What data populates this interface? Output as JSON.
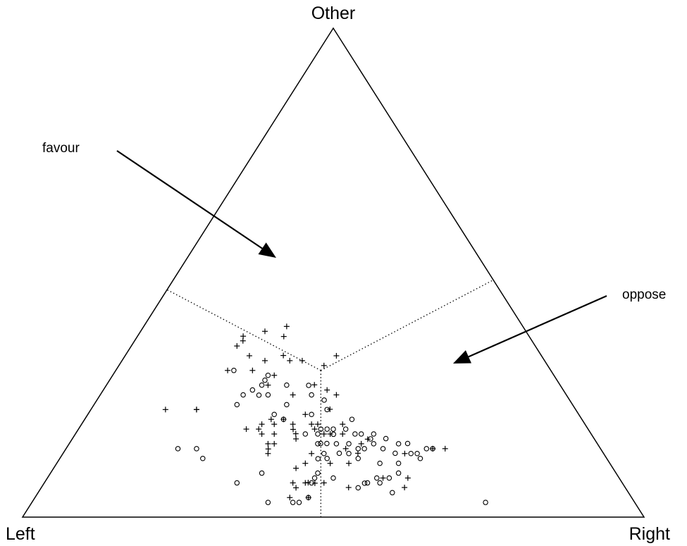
{
  "chart_data": {
    "type": "scatter",
    "subtype": "ternary",
    "title": "",
    "vertices": {
      "top": "Other",
      "left": "Left",
      "right": "Right"
    },
    "annotations": [
      {
        "text": "favour",
        "points_to": "+"
      },
      {
        "text": "oppose",
        "points_to": "o"
      }
    ],
    "reference_point": {
      "left": 0.37,
      "right": 0.33,
      "other": 0.3
    },
    "series": [
      {
        "marker": "+",
        "points": [
          [
            0.48,
            0.17,
            0.35
          ],
          [
            0.46,
            0.17,
            0.37
          ],
          [
            0.46,
            0.18,
            0.35
          ],
          [
            0.42,
            0.2,
            0.38
          ],
          [
            0.4,
            0.23,
            0.38
          ],
          [
            0.38,
            0.23,
            0.39
          ],
          [
            0.47,
            0.2,
            0.33
          ],
          [
            0.33,
            0.34,
            0.33
          ],
          [
            0.36,
            0.33,
            0.31
          ],
          [
            0.52,
            0.18,
            0.3
          ],
          [
            0.48,
            0.22,
            0.3
          ],
          [
            0.41,
            0.26,
            0.32
          ],
          [
            0.45,
            0.23,
            0.32
          ],
          [
            0.41,
            0.27,
            0.32
          ],
          [
            0.39,
            0.29,
            0.32
          ],
          [
            0.45,
            0.26,
            0.29
          ],
          [
            0.61,
            0.17,
            0.22
          ],
          [
            0.61,
            0.17,
            0.22
          ],
          [
            0.66,
            0.12,
            0.22
          ],
          [
            0.47,
            0.26,
            0.27
          ],
          [
            0.44,
            0.31,
            0.25
          ],
          [
            0.39,
            0.34,
            0.26
          ],
          [
            0.37,
            0.38,
            0.25
          ],
          [
            0.39,
            0.39,
            0.21
          ],
          [
            0.44,
            0.35,
            0.21
          ],
          [
            0.44,
            0.37,
            0.19
          ],
          [
            0.5,
            0.3,
            0.2
          ],
          [
            0.48,
            0.32,
            0.2
          ],
          [
            0.5,
            0.31,
            0.19
          ],
          [
            0.53,
            0.29,
            0.18
          ],
          [
            0.55,
            0.27,
            0.18
          ],
          [
            0.52,
            0.29,
            0.19
          ],
          [
            0.47,
            0.34,
            0.19
          ],
          [
            0.38,
            0.36,
            0.26
          ],
          [
            0.44,
            0.38,
            0.18
          ],
          [
            0.43,
            0.4,
            0.17
          ],
          [
            0.53,
            0.3,
            0.17
          ],
          [
            0.51,
            0.32,
            0.17
          ],
          [
            0.48,
            0.34,
            0.19
          ],
          [
            0.43,
            0.38,
            0.19
          ],
          [
            0.39,
            0.42,
            0.19
          ],
          [
            0.37,
            0.47,
            0.17
          ],
          [
            0.53,
            0.32,
            0.15
          ],
          [
            0.54,
            0.32,
            0.15
          ],
          [
            0.52,
            0.33,
            0.15
          ],
          [
            0.48,
            0.36,
            0.16
          ],
          [
            0.47,
            0.36,
            0.16
          ],
          [
            0.42,
            0.41,
            0.17
          ],
          [
            0.4,
            0.43,
            0.17
          ],
          [
            0.54,
            0.33,
            0.13
          ],
          [
            0.47,
            0.4,
            0.13
          ],
          [
            0.41,
            0.45,
            0.14
          ],
          [
            0.38,
            0.47,
            0.15
          ],
          [
            0.39,
            0.48,
            0.12
          ],
          [
            0.42,
            0.47,
            0.11
          ],
          [
            0.51,
            0.39,
            0.1
          ],
          [
            0.49,
            0.4,
            0.11
          ],
          [
            0.53,
            0.4,
            0.07
          ],
          [
            0.44,
            0.5,
            0.05
          ],
          [
            0.38,
            0.54,
            0.08
          ],
          [
            0.35,
            0.59,
            0.05
          ],
          [
            0.5,
            0.43,
            0.06
          ],
          [
            0.48,
            0.45,
            0.07
          ],
          [
            0.5,
            0.43,
            0.08
          ],
          [
            0.45,
            0.44,
            0.11
          ],
          [
            0.55,
            0.41,
            0.04
          ],
          [
            0.52,
            0.44,
            0.04
          ],
          [
            0.51,
            0.42,
            0.07
          ],
          [
            0.53,
            0.41,
            0.06
          ],
          [
            0.34,
            0.58,
            0.08
          ],
          [
            0.32,
            0.55,
            0.13
          ],
          [
            0.27,
            0.59,
            0.14
          ],
          [
            0.25,
            0.61,
            0.14
          ]
        ]
      },
      {
        "marker": "o",
        "points": [
          [
            0.51,
            0.19,
            0.3
          ],
          [
            0.5,
            0.24,
            0.26
          ],
          [
            0.5,
            0.25,
            0.26
          ],
          [
            0.52,
            0.23,
            0.25
          ],
          [
            0.48,
            0.25,
            0.27
          ],
          [
            0.47,
            0.25,
            0.28
          ],
          [
            0.48,
            0.27,
            0.25
          ],
          [
            0.46,
            0.25,
            0.29
          ],
          [
            0.54,
            0.23,
            0.23
          ],
          [
            0.44,
            0.29,
            0.27
          ],
          [
            0.41,
            0.32,
            0.28
          ],
          [
            0.46,
            0.31,
            0.23
          ],
          [
            0.49,
            0.3,
            0.21
          ],
          [
            0.41,
            0.34,
            0.25
          ],
          [
            0.43,
            0.36,
            0.21
          ],
          [
            0.4,
            0.36,
            0.25
          ],
          [
            0.41,
            0.41,
            0.18
          ],
          [
            0.37,
            0.43,
            0.2
          ],
          [
            0.48,
            0.32,
            0.2
          ],
          [
            0.43,
            0.39,
            0.18
          ],
          [
            0.4,
            0.38,
            0.22
          ],
          [
            0.42,
            0.4,
            0.18
          ],
          [
            0.46,
            0.37,
            0.17
          ],
          [
            0.44,
            0.39,
            0.17
          ],
          [
            0.42,
            0.41,
            0.18
          ],
          [
            0.39,
            0.43,
            0.18
          ],
          [
            0.38,
            0.45,
            0.17
          ],
          [
            0.37,
            0.46,
            0.17
          ],
          [
            0.36,
            0.48,
            0.16
          ],
          [
            0.35,
            0.48,
            0.17
          ],
          [
            0.4,
            0.45,
            0.15
          ],
          [
            0.42,
            0.43,
            0.15
          ],
          [
            0.44,
            0.41,
            0.14
          ],
          [
            0.45,
            0.4,
            0.15
          ],
          [
            0.43,
            0.42,
            0.14
          ],
          [
            0.38,
            0.48,
            0.14
          ],
          [
            0.36,
            0.49,
            0.15
          ],
          [
            0.35,
            0.51,
            0.14
          ],
          [
            0.33,
            0.51,
            0.15
          ],
          [
            0.32,
            0.53,
            0.15
          ],
          [
            0.39,
            0.47,
            0.14
          ],
          [
            0.33,
            0.54,
            0.12
          ],
          [
            0.31,
            0.56,
            0.13
          ],
          [
            0.3,
            0.57,
            0.13
          ],
          [
            0.28,
            0.58,
            0.14
          ],
          [
            0.3,
            0.55,
            0.14
          ],
          [
            0.41,
            0.46,
            0.13
          ],
          [
            0.42,
            0.45,
            0.12
          ],
          [
            0.45,
            0.42,
            0.13
          ],
          [
            0.47,
            0.41,
            0.13
          ],
          [
            0.45,
            0.43,
            0.12
          ],
          [
            0.4,
            0.48,
            0.12
          ],
          [
            0.37,
            0.52,
            0.11
          ],
          [
            0.34,
            0.55,
            0.11
          ],
          [
            0.35,
            0.56,
            0.09
          ],
          [
            0.37,
            0.55,
            0.08
          ],
          [
            0.42,
            0.51,
            0.08
          ],
          [
            0.43,
            0.51,
            0.06
          ],
          [
            0.41,
            0.52,
            0.07
          ],
          [
            0.39,
            0.53,
            0.08
          ],
          [
            0.39,
            0.54,
            0.07
          ],
          [
            0.46,
            0.46,
            0.08
          ],
          [
            0.48,
            0.43,
            0.09
          ],
          [
            0.49,
            0.43,
            0.08
          ],
          [
            0.5,
            0.43,
            0.07
          ],
          [
            0.52,
            0.44,
            0.04
          ],
          [
            0.54,
            0.43,
            0.03
          ],
          [
            0.55,
            0.42,
            0.03
          ],
          [
            0.59,
            0.38,
            0.03
          ],
          [
            0.62,
            0.31,
            0.07
          ],
          [
            0.57,
            0.34,
            0.09
          ],
          [
            0.65,
            0.21,
            0.14
          ],
          [
            0.65,
            0.23,
            0.12
          ],
          [
            0.68,
            0.18,
            0.14
          ],
          [
            0.27,
            0.59,
            0.14
          ],
          [
            0.3,
            0.58,
            0.12
          ],
          [
            0.38,
            0.57,
            0.05
          ],
          [
            0.24,
            0.73,
            0.03
          ]
        ]
      }
    ]
  }
}
